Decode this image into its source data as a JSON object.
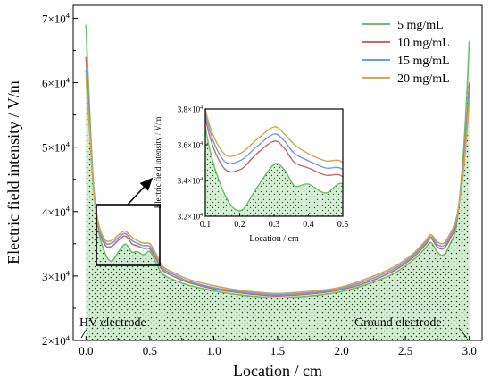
{
  "chart_data": {
    "type": "line",
    "xlabel": "Location / cm",
    "ylabel": "Electric field intensity / V/m",
    "xlim": [
      -0.1,
      3.1
    ],
    "ylim": [
      20000,
      72000
    ],
    "x_ticks": [
      "0.0",
      "0.5",
      "1.0",
      "1.5",
      "2.0",
      "2.5",
      "3.0"
    ],
    "y_ticks": [
      {
        "mant": "2×10",
        "exp": "4"
      },
      {
        "mant": "3×10",
        "exp": "4"
      },
      {
        "mant": "4×10",
        "exp": "4"
      },
      {
        "mant": "5×10",
        "exp": "4"
      },
      {
        "mant": "6×10",
        "exp": "4"
      },
      {
        "mant": "7×10",
        "exp": "4"
      }
    ],
    "legend_position": "top-right",
    "annotations": {
      "left": "HV electrode",
      "right": "Ground electrode"
    },
    "x": [
      0.0,
      0.03,
      0.06,
      0.1,
      0.15,
      0.2,
      0.25,
      0.3,
      0.33,
      0.36,
      0.4,
      0.45,
      0.5,
      0.55,
      0.6,
      0.7,
      0.8,
      1.0,
      1.2,
      1.4,
      1.5,
      1.6,
      1.8,
      2.0,
      2.2,
      2.4,
      2.55,
      2.65,
      2.7,
      2.75,
      2.8,
      2.85,
      2.9,
      2.95,
      2.98,
      3.0
    ],
    "series": [
      {
        "name": "5 mg/mL",
        "color": "#6abf69",
        "values": [
          69000,
          55000,
          44000,
          37000,
          33500,
          32300,
          33600,
          34900,
          34600,
          33700,
          33800,
          33300,
          33800,
          32000,
          30300,
          29300,
          28600,
          27700,
          27100,
          26700,
          26600,
          26700,
          27000,
          27600,
          28700,
          30300,
          32300,
          34200,
          35200,
          33700,
          33300,
          35000,
          38000,
          48000,
          58000,
          66500
        ]
      },
      {
        "name": "10 mg/mL",
        "color": "#c96a6a",
        "values": [
          64000,
          53000,
          43500,
          37500,
          34800,
          34600,
          35500,
          36200,
          35800,
          35000,
          34700,
          34300,
          34200,
          32600,
          30900,
          29800,
          29000,
          28000,
          27400,
          27000,
          26900,
          27000,
          27300,
          27900,
          29000,
          30700,
          32700,
          34700,
          35800,
          34500,
          34300,
          35800,
          38500,
          46500,
          54000,
          60000
        ]
      },
      {
        "name": "15 mg/mL",
        "color": "#6a9ee6",
        "values": [
          62000,
          52500,
          43500,
          37800,
          35200,
          35100,
          35900,
          36600,
          36200,
          35500,
          35100,
          34700,
          34600,
          33000,
          31200,
          30100,
          29200,
          28200,
          27600,
          27200,
          27100,
          27200,
          27500,
          28100,
          29300,
          31000,
          33000,
          35000,
          36100,
          34900,
          34700,
          36200,
          38800,
          46000,
          53000,
          58800
        ]
      },
      {
        "name": "20 mg/mL",
        "color": "#d2a64e",
        "values": [
          61000,
          52000,
          43500,
          38000,
          35600,
          35500,
          36300,
          37000,
          36600,
          36000,
          35500,
          35100,
          35000,
          33400,
          31500,
          30400,
          29500,
          28500,
          27800,
          27400,
          27300,
          27400,
          27700,
          28300,
          29600,
          31300,
          33300,
          35300,
          36400,
          35300,
          35100,
          36600,
          39100,
          45500,
          52000,
          57500
        ]
      }
    ],
    "inset": {
      "xlabel": "Location / cm",
      "ylabel": "Electric field intensity / V/m",
      "xlim": [
        0.1,
        0.5
      ],
      "ylim": [
        32000,
        38000
      ],
      "x_ticks": [
        "0.1",
        "0.2",
        "0.3",
        "0.4",
        "0.5"
      ],
      "y_ticks": [
        {
          "mant": "3.2×10",
          "exp": "4"
        },
        {
          "mant": "3.4×10",
          "exp": "4"
        },
        {
          "mant": "3.6×10",
          "exp": "4"
        },
        {
          "mant": "3.8×10",
          "exp": "4"
        }
      ]
    }
  }
}
